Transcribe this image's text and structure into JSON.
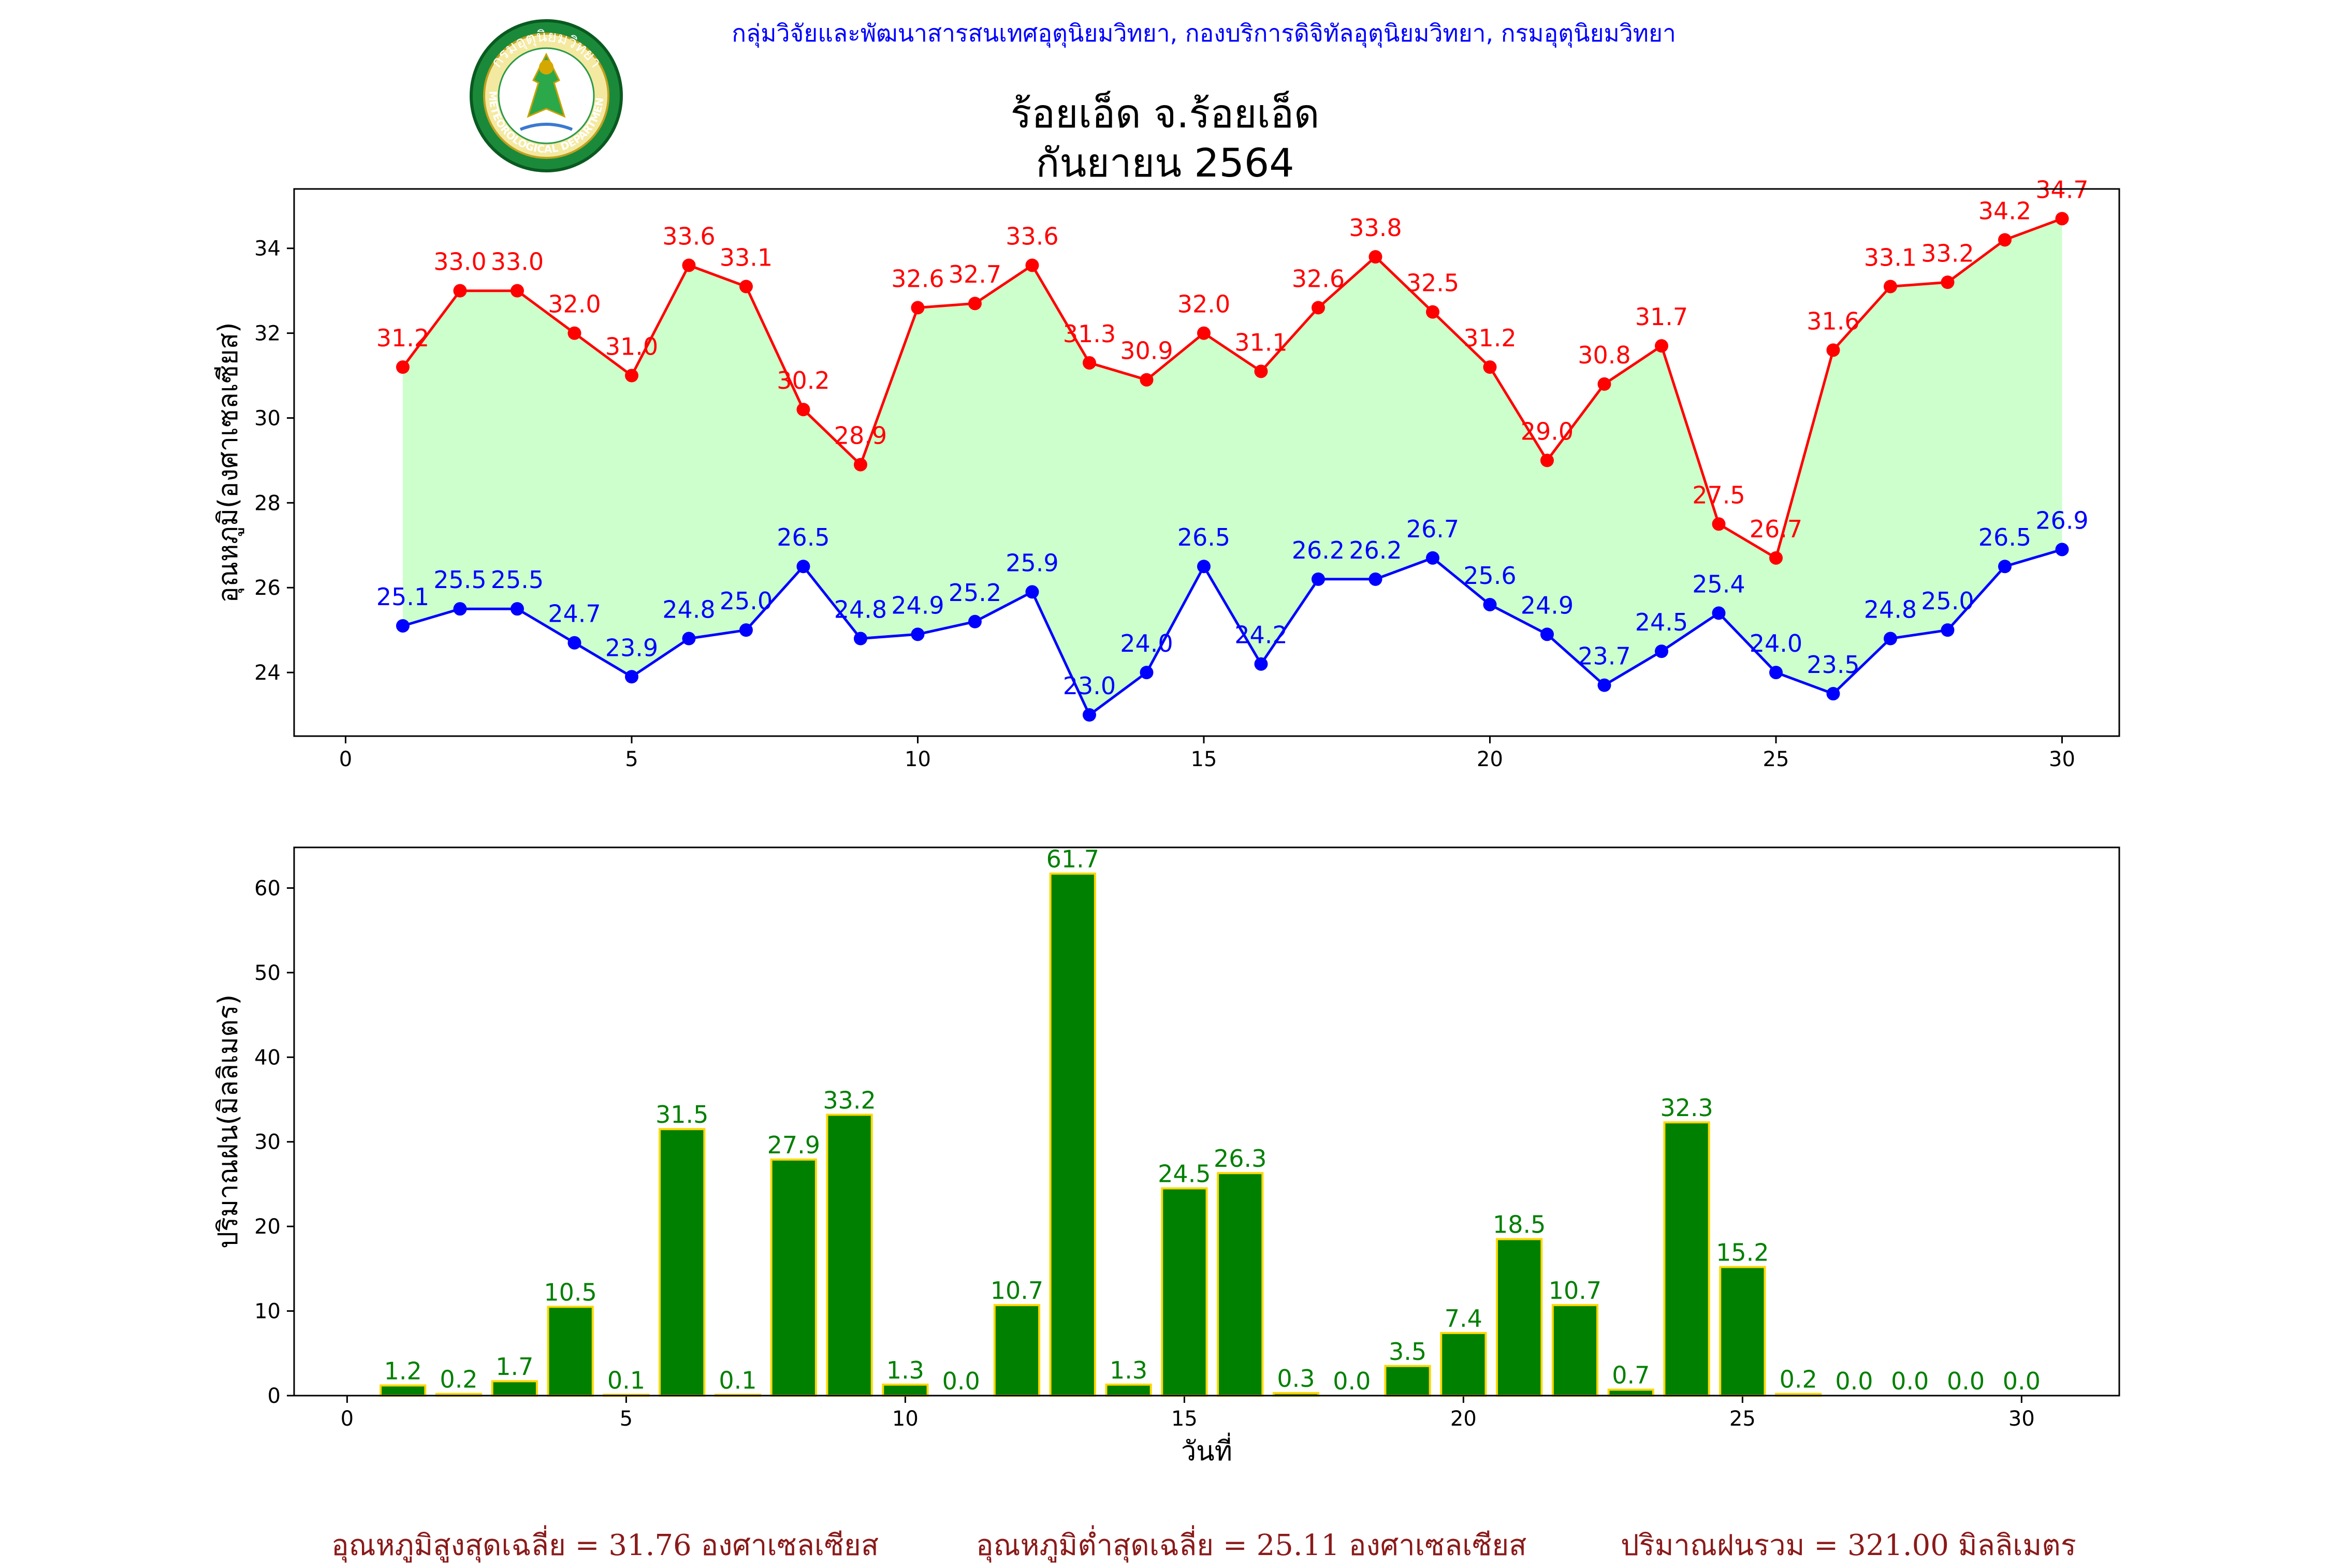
{
  "header": {
    "department": "กลุ่มวิจัยและพัฒนาสารสนเทศอุตุนิยมวิทยา, กองบริการดิจิทัลอุตุนิยมวิทยา, กรมอุตุนิยมวิทยา",
    "title_line1": "ร้อยเอ็ด จ.ร้อยเอ็ด",
    "title_line2": "กันยายน 2564",
    "logo_text_top": "กรมอุตุนิยมวิทยา",
    "logo_text_bottom": "METEOROLOGICAL DEPARTMENT"
  },
  "summary": {
    "avg_max": "อุณหภูมิสูงสุดเฉลี่ย = 31.76 องศาเซลเซียส",
    "avg_min": "อุณหภูมิต่ำสุดเฉลี่ย = 25.11 องศาเซลเซียส",
    "total_rain": "ปริมาณฝนรวม = 321.00 มิลลิเมตร"
  },
  "colors": {
    "max_line": "#ff0000",
    "min_line": "#0000ff",
    "fill": "#ccffcc",
    "bar_fill": "#008000",
    "bar_edge": "#ffd700",
    "bar_label": "#008000",
    "summary_text": "#8b1a1a",
    "dept_text": "#0000ff"
  },
  "chart_data": [
    {
      "type": "line",
      "ylabel": "อุณหภูมิ(องศาเซลเซียส)",
      "xlabel": "",
      "xlim": [
        -0.9,
        31.0
      ],
      "ylim": [
        22.5,
        35.4
      ],
      "xticks": [
        0,
        5,
        10,
        15,
        20,
        25,
        30
      ],
      "yticks": [
        24,
        26,
        28,
        30,
        32,
        34
      ],
      "x": [
        1,
        2,
        3,
        4,
        5,
        6,
        7,
        8,
        9,
        10,
        11,
        12,
        13,
        14,
        15,
        16,
        17,
        18,
        19,
        20,
        21,
        22,
        23,
        24,
        25,
        26,
        27,
        28,
        29,
        30
      ],
      "series": [
        {
          "key": "max",
          "values": [
            31.2,
            33.0,
            33.0,
            32.0,
            31.0,
            33.6,
            33.1,
            30.2,
            28.9,
            32.6,
            32.7,
            33.6,
            31.3,
            30.9,
            32.0,
            31.1,
            32.6,
            33.8,
            32.5,
            31.2,
            29.0,
            30.8,
            31.7,
            27.5,
            26.7,
            31.6,
            33.1,
            33.2,
            34.2,
            34.7
          ]
        },
        {
          "key": "min",
          "values": [
            25.1,
            25.5,
            25.5,
            24.7,
            23.9,
            24.8,
            25.0,
            26.5,
            24.8,
            24.9,
            25.2,
            25.9,
            23.0,
            24.0,
            26.5,
            24.2,
            26.2,
            26.2,
            26.7,
            25.6,
            24.9,
            23.7,
            24.5,
            25.4,
            24.0,
            23.5,
            24.8,
            25.0,
            26.5,
            26.9
          ]
        }
      ],
      "fill_between": true,
      "grid": false
    },
    {
      "type": "bar",
      "ylabel": "ปริมาณฝน(มิลลิเมตร)",
      "xlabel": "วันที่",
      "xlim": [
        -0.95,
        31.75
      ],
      "ylim": [
        0,
        64.8
      ],
      "xticks": [
        0,
        5,
        10,
        15,
        20,
        25,
        30
      ],
      "yticks": [
        0,
        10,
        20,
        30,
        40,
        50,
        60
      ],
      "x": [
        1,
        2,
        3,
        4,
        5,
        6,
        7,
        8,
        9,
        10,
        11,
        12,
        13,
        14,
        15,
        16,
        17,
        18,
        19,
        20,
        21,
        22,
        23,
        24,
        25,
        26,
        27,
        28,
        29,
        30
      ],
      "values": [
        1.2,
        0.2,
        1.7,
        10.5,
        0.1,
        31.5,
        0.1,
        27.9,
        33.2,
        1.3,
        0.0,
        10.7,
        61.7,
        1.3,
        24.5,
        26.3,
        0.3,
        0.0,
        3.5,
        7.4,
        18.5,
        10.7,
        0.7,
        32.3,
        15.2,
        0.2,
        0.0,
        0.0,
        0.0,
        0.0
      ],
      "grid": false
    }
  ]
}
